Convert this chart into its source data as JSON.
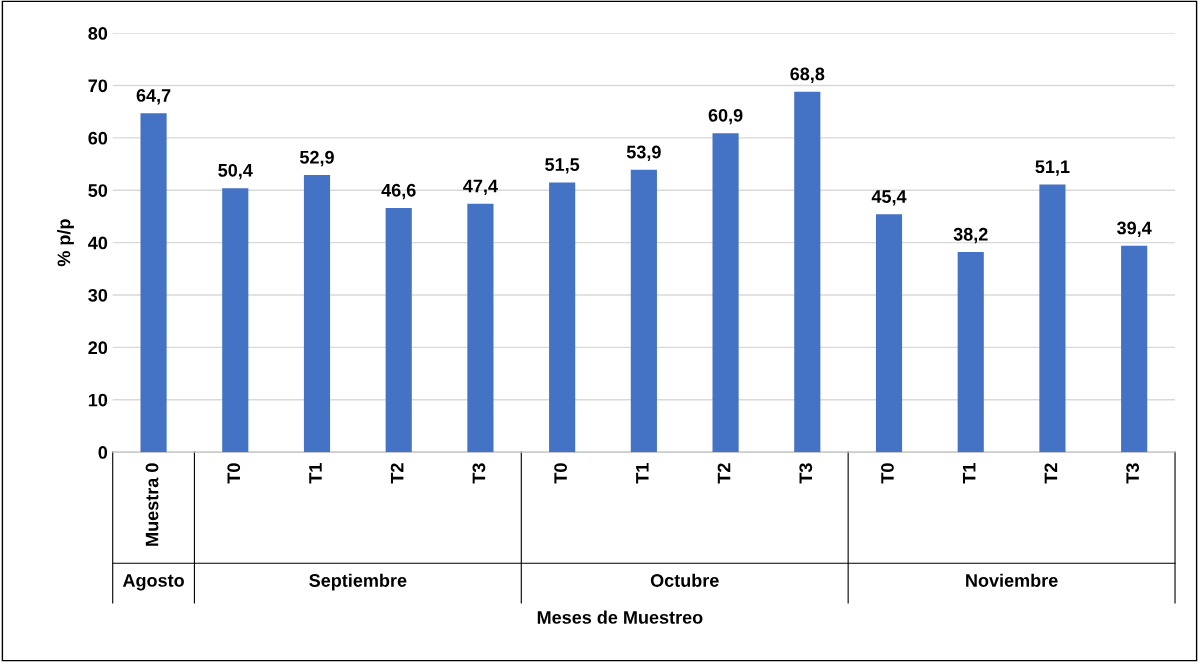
{
  "chart_data": {
    "type": "bar",
    "ylabel": "% p/p",
    "xlabel": "Meses de Muestreo",
    "categories": [
      "Muestra 0",
      "T0",
      "T1",
      "T2",
      "T3",
      "T0",
      "T1",
      "T2",
      "T3",
      "T0",
      "T1",
      "T2",
      "T3"
    ],
    "values": [
      64.7,
      50.4,
      52.9,
      46.6,
      47.4,
      51.5,
      53.9,
      60.9,
      68.8,
      45.4,
      38.2,
      51.1,
      39.4
    ],
    "value_labels": [
      "64,7",
      "50,4",
      "52,9",
      "46,6",
      "47,4",
      "51,5",
      "53,9",
      "60,9",
      "68,8",
      "45,4",
      "38,2",
      "51,1",
      "39,4"
    ],
    "color": "#4472c4",
    "ylim": [
      0,
      80
    ],
    "yticks": [
      0,
      10,
      20,
      30,
      40,
      50,
      60,
      70,
      80
    ],
    "grid": "y",
    "annotations": [
      "Agosto",
      "Septiembre",
      "Octubre",
      "Noviembre"
    ]
  }
}
